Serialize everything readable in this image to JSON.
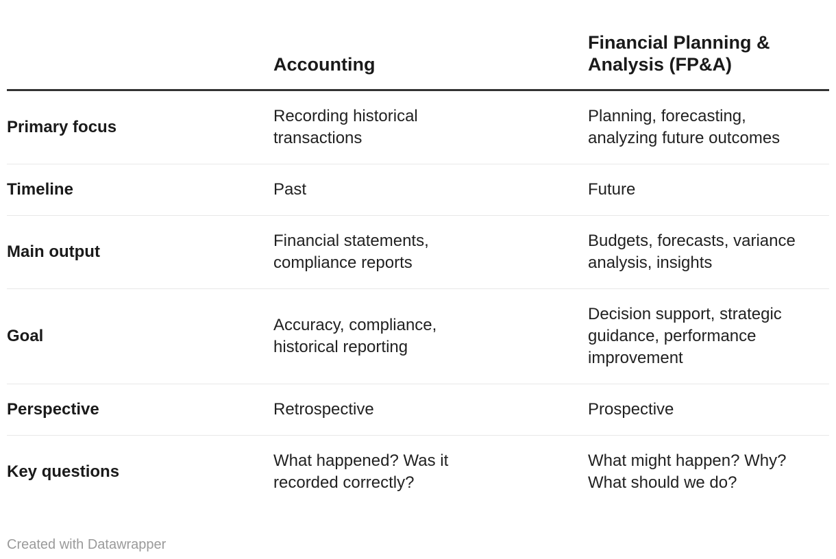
{
  "chart_data": {
    "type": "table",
    "title": "",
    "columns": [
      "",
      "Accounting",
      "Financial Planning & Analysis (FP&A)"
    ],
    "rows": [
      [
        "Primary focus",
        "Recording historical transactions",
        "Planning, forecasting, analyzing future outcomes"
      ],
      [
        "Timeline",
        "Past",
        "Future"
      ],
      [
        "Main output",
        "Financial statements, compliance reports",
        "Budgets, forecasts, variance analysis, insights"
      ],
      [
        "Goal",
        "Accuracy, compliance, historical reporting",
        "Decision support, strategic guidance, performance improvement"
      ],
      [
        "Perspective",
        "Retrospective",
        "Prospective"
      ],
      [
        "Key questions",
        "What happened? Was it recorded correctly?",
        "What might happen? Why? What should we do?"
      ]
    ]
  },
  "table": {
    "header": {
      "col_accounting": "Accounting",
      "col_fpa": "Financial Planning &\nAnalysis (FP&A)"
    },
    "rows": [
      {
        "label": "Primary focus",
        "accounting": "Recording historical\ntransactions",
        "fpa": "Planning, forecasting,\nanalyzing future outcomes"
      },
      {
        "label": "Timeline",
        "accounting": "Past",
        "fpa": "Future"
      },
      {
        "label": "Main output",
        "accounting": "Financial statements,\ncompliance reports",
        "fpa": "Budgets, forecasts, variance\nanalysis, insights"
      },
      {
        "label": "Goal",
        "accounting": "Accuracy, compliance,\nhistorical reporting",
        "fpa": "Decision support, strategic\nguidance, performance\nimprovement"
      },
      {
        "label": "Perspective",
        "accounting": "Retrospective",
        "fpa": "Prospective"
      },
      {
        "label": "Key questions",
        "accounting": "What happened? Was it\nrecorded correctly?",
        "fpa": "What might happen? Why?\nWhat should we do?"
      }
    ]
  },
  "footer": {
    "credit": "Created with Datawrapper"
  },
  "colors": {
    "text_dark": "#1a1a1a",
    "text_body": "#212121",
    "header_rule": "#333333",
    "row_separator": "#e8e8e8",
    "credit_gray": "#9a9a9a",
    "background": "#ffffff"
  }
}
